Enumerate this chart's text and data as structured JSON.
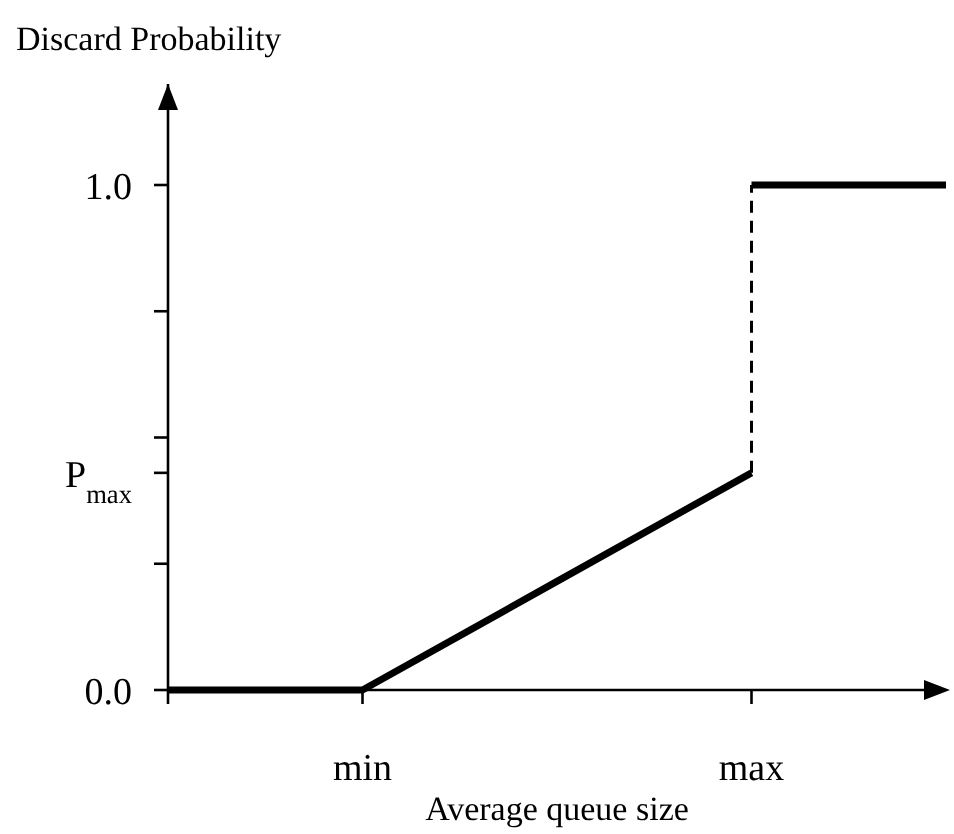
{
  "chart_data": {
    "type": "line",
    "ylabel": "Discard Probability",
    "xlabel": "Average queue size",
    "categories": [
      null,
      "min",
      null,
      "max",
      null
    ],
    "ylim": [
      0,
      1.2
    ],
    "yticks": [
      {
        "value": 0,
        "label": "0.0"
      },
      {
        "value": 0.25,
        "label": null
      },
      {
        "value": 0.43,
        "label": "P$_{max}$"
      },
      {
        "value": 0.5,
        "label": null
      },
      {
        "value": 0.75,
        "label": null
      },
      {
        "value": 1,
        "label": "1.0"
      }
    ],
    "marker": "none",
    "line_style": "solid",
    "series": [
      {
        "color": "#000000",
        "values": [
          0,
          0,
          0.215,
          0.43,
          null
        ]
      },
      {
        "color": "#000000",
        "x": [
          "max",
          "max"
        ],
        "values": [
          0.43,
          1
        ],
        "line_style": "dashed"
      },
      {
        "color": "#000000",
        "values": [
          null,
          null,
          null,
          1,
          1
        ]
      }
    ]
  }
}
